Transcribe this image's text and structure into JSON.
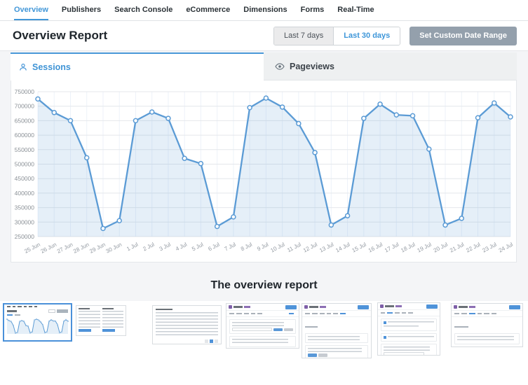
{
  "nav": {
    "items": [
      {
        "label": "Overview",
        "active": true
      },
      {
        "label": "Publishers",
        "active": false
      },
      {
        "label": "Search Console",
        "active": false
      },
      {
        "label": "eCommerce",
        "active": false
      },
      {
        "label": "Dimensions",
        "active": false
      },
      {
        "label": "Forms",
        "active": false
      },
      {
        "label": "Real-Time",
        "active": false
      }
    ]
  },
  "header": {
    "title": "Overview Report",
    "range_buttons": [
      {
        "label": "Last 7 days",
        "active": false
      },
      {
        "label": "Last 30 days",
        "active": true
      }
    ],
    "custom_range_label": "Set Custom Date Range"
  },
  "report_tabs": [
    {
      "label": "Sessions",
      "icon": "person-icon",
      "active": true
    },
    {
      "label": "Pageviews",
      "icon": "eye-icon",
      "active": false
    }
  ],
  "chart_data": {
    "type": "line",
    "title": "Sessions",
    "xlabel": "",
    "ylabel": "",
    "categories": [
      "25 Jun",
      "26 Jun",
      "27 Jun",
      "28 Jun",
      "29 Jun",
      "30 Jun",
      "1 Jul",
      "2 Jul",
      "3 Jul",
      "4 Jul",
      "5 Jul",
      "6 Jul",
      "7 Jul",
      "8 Jul",
      "9 Jul",
      "10 Jul",
      "11 Jul",
      "12 Jul",
      "13 Jul",
      "14 Jul",
      "15 Jul",
      "16 Jul",
      "17 Jul",
      "18 Jul",
      "19 Jul",
      "20 Jul",
      "21 Jul",
      "22 Jul",
      "23 Jul",
      "24 Jul"
    ],
    "series": [
      {
        "name": "Sessions",
        "values": [
          725000,
          678000,
          650000,
          522000,
          278000,
          305000,
          650000,
          680000,
          658000,
          520000,
          502000,
          285000,
          318000,
          695000,
          728000,
          697000,
          640000,
          540000,
          290000,
          322000,
          658000,
          707000,
          670000,
          667000,
          552000,
          290000,
          313000,
          660000,
          711000,
          663000
        ]
      }
    ],
    "ylim": [
      250000,
      750000
    ],
    "ytick_step": 50000,
    "grid": true,
    "legend": "none",
    "line_color": "#5b9bd5",
    "fill_color": "rgba(91,155,213,0.16)",
    "marker": "circle-white"
  },
  "caption": "The overview report",
  "gallery": {
    "thumbnails": [
      {
        "name": "overview-report-chart",
        "selected": true
      },
      {
        "name": "top-tables-report",
        "selected": false
      },
      {
        "name": "top-posts-list",
        "selected": false
      },
      {
        "name": "settings-license-page",
        "selected": false
      },
      {
        "name": "settings-permissions-page",
        "selected": false
      },
      {
        "name": "settings-engagement-page",
        "selected": false
      },
      {
        "name": "settings-ecommerce-page",
        "selected": false
      }
    ]
  },
  "colors": {
    "accent_blue": "#4297d8",
    "chart_line": "#5b9bd5",
    "page_gray": "#f4f5f7",
    "custom_button_bg": "#94a0ac",
    "monsterinsights_purple": "#7e5fa8"
  }
}
